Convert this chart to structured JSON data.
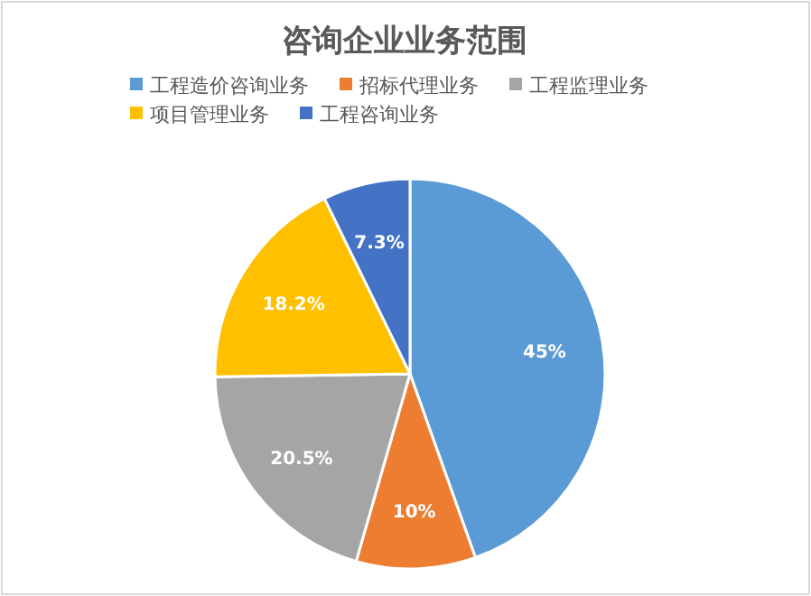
{
  "chart_data": {
    "type": "pie",
    "title": "咨询企业业务范围",
    "categories": [
      "工程造价咨询业务",
      "招标代理业务",
      "工程监理业务",
      "项目管理业务",
      "工程咨询业务"
    ],
    "values": [
      45,
      10,
      20.5,
      18.2,
      7.3
    ],
    "value_labels": [
      "45%",
      "10%",
      "20.5%",
      "18.2%",
      "7.3%"
    ],
    "colors": [
      "#5b9bd5",
      "#ed7d31",
      "#a5a5a5",
      "#ffc000",
      "#4472c4"
    ],
    "legend": "top"
  }
}
